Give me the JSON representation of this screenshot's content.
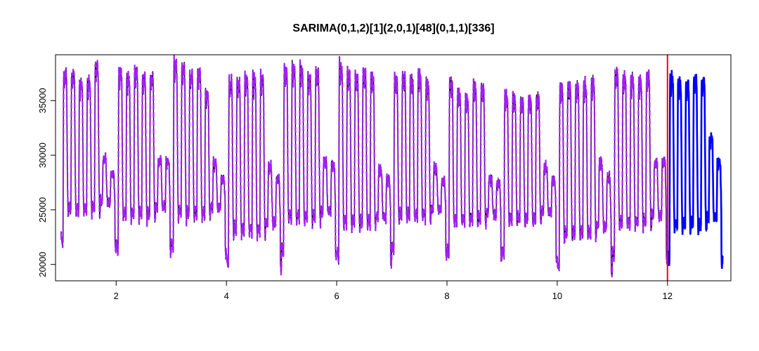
{
  "chart_data": {
    "type": "line",
    "title": "SARIMA(0,1,2)[1](2,0,1)[48](0,1,1)[336]",
    "xlabel": "",
    "ylabel": "",
    "xlim": [
      0.9,
      13.15
    ],
    "ylim": [
      18500,
      39200
    ],
    "x_ticks": [
      2,
      4,
      6,
      8,
      10,
      12
    ],
    "y_ticks": [
      20000,
      25000,
      30000,
      35000
    ],
    "grid": false,
    "legend": "none",
    "forecast_start": 12,
    "colors": {
      "actual": "#000000",
      "fitted": "#a020f0",
      "forecast": "#0000ff",
      "divider": "#ff0000"
    },
    "weekly_high_peaks": [
      [
        37900,
        37800,
        36900,
        37000,
        38500
      ],
      [
        38000,
        37500,
        38100,
        37500,
        37600
      ],
      [
        38800,
        38500,
        37800,
        38000,
        36000
      ],
      [
        37200,
        37200,
        37400,
        37500,
        37600
      ],
      [
        38100,
        38400,
        38300,
        37500,
        38100
      ],
      [
        38500,
        37900,
        37600,
        38000,
        37500
      ],
      [
        37400,
        37600,
        37200,
        37600,
        36900
      ],
      [
        37100,
        35900,
        35400,
        36500,
        36500
      ],
      [
        35700,
        35400,
        35200,
        35300,
        35600
      ],
      [
        36500,
        36700,
        36700,
        36700,
        37000
      ],
      [
        38000,
        37500,
        37300,
        37000,
        37600
      ],
      [
        37500,
        37000,
        36800,
        37400,
        37200
      ]
    ],
    "weekly_weekend_peaks": [
      [
        29800,
        28400
      ],
      [
        29700,
        29600
      ],
      [
        29500,
        28000
      ],
      [
        29200,
        28000
      ],
      [
        29700,
        29200
      ],
      [
        28800,
        28000
      ],
      [
        29000,
        27800
      ],
      [
        28000,
        27600
      ],
      [
        29000,
        27800
      ],
      [
        29500,
        28100
      ],
      [
        29500,
        29700
      ],
      [
        31800,
        29600
      ]
    ],
    "weekly_lows": [
      21300,
      20800,
      20900,
      19300,
      20500,
      20000,
      20700,
      20300,
      20400,
      19000,
      20000,
      19800,
      19500
    ],
    "series": [
      {
        "values_ref": "weekly profile",
        "role": "actual"
      },
      {
        "values_ref": "weekly profile",
        "role": "fitted"
      },
      {
        "values_ref": "weekly profile",
        "role": "forecast"
      }
    ]
  }
}
